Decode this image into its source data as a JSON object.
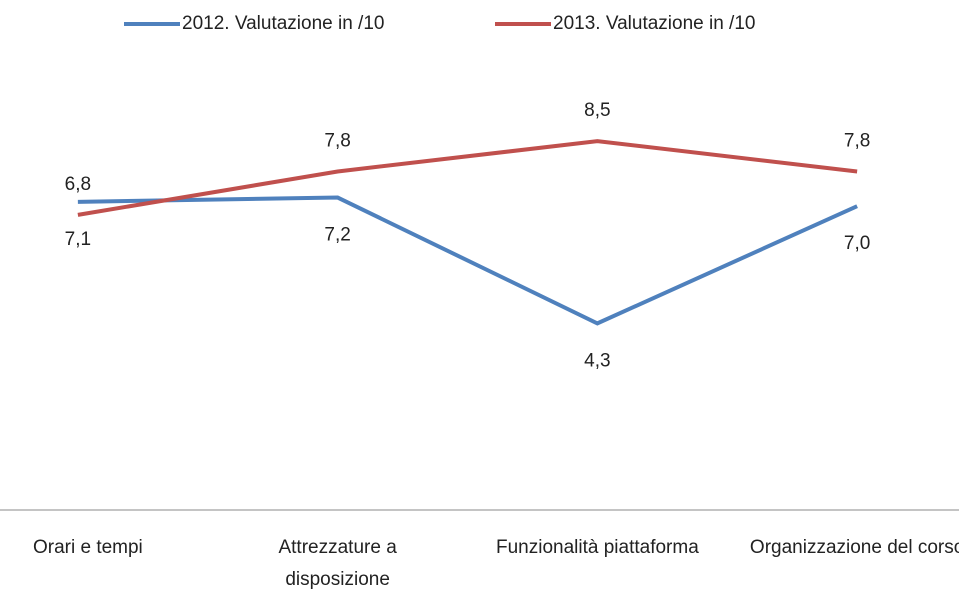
{
  "chart_data": {
    "type": "line",
    "categories": [
      "Orari e tempi",
      "Attrezzature a disposizione",
      "Funzionalità piattaforma",
      "Organizzazione del corso"
    ],
    "series": [
      {
        "name": "2012. Valutazione in /10",
        "color": "#4f81bd",
        "values": [
          7.1,
          7.2,
          4.3,
          7.0
        ],
        "value_labels": [
          "7,1",
          "7,2",
          "4,3",
          "7,0"
        ]
      },
      {
        "name": "2013. Valutazione in /10",
        "color": "#c0504d",
        "values": [
          6.8,
          7.8,
          8.5,
          7.8
        ],
        "value_labels": [
          "6,8",
          "7,8",
          "8,5",
          "7,8"
        ]
      }
    ],
    "ylim": [
      0,
      10
    ],
    "legend": "top"
  }
}
